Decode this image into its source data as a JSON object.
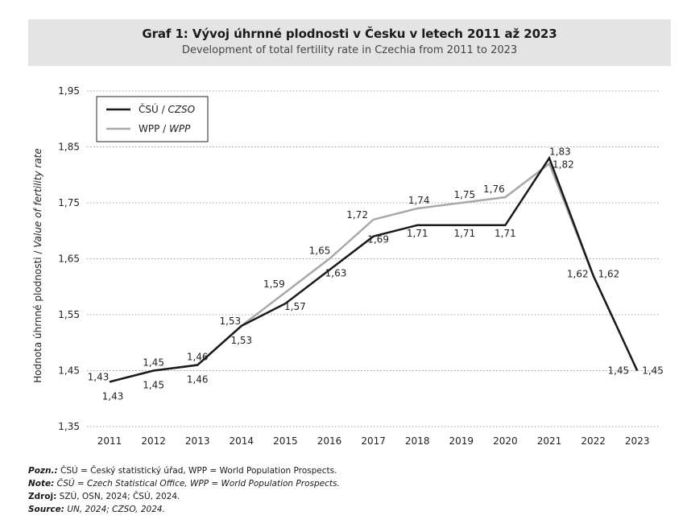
{
  "header": {
    "title_prefix": "Graf 1:",
    "title_main": "Vývoj úhrnné plodnosti v Česku v letech 2011 až 2023",
    "subtitle": "Development of total fertility rate in Czechia from 2011 to 2023"
  },
  "chart_data": {
    "type": "line",
    "title": "Graf 1: Vývoj úhrnné plodnosti v Česku v letech 2011 až 2023",
    "subtitle": "Development of total fertility rate in Czechia from 2011 to 2023",
    "xlabel": "",
    "ylabel": "Hodnota úhrnné plodnosti / Value of fertility rate",
    "ylabel_cz": "Hodnota úhrnné plodnosti / ",
    "ylabel_en": "Value of fertility rate",
    "ylim": [
      1.35,
      1.95
    ],
    "yticks": [
      1.35,
      1.45,
      1.55,
      1.65,
      1.75,
      1.85,
      1.95
    ],
    "ytick_labels": [
      "1,35",
      "1,45",
      "1,55",
      "1,65",
      "1,75",
      "1,85",
      "1,95"
    ],
    "categories": [
      "2011",
      "2012",
      "2013",
      "2014",
      "2015",
      "2016",
      "2017",
      "2018",
      "2019",
      "2020",
      "2021",
      "2022",
      "2023"
    ],
    "grid": "horizontal-dotted",
    "legend_position": "top-left",
    "series": [
      {
        "name": "ČSÚ / CZSO",
        "name_cz": "ČSÚ / ",
        "name_en": "CZSO",
        "color": "#1a1a1a",
        "values": [
          1.43,
          1.45,
          1.46,
          1.53,
          1.57,
          1.63,
          1.69,
          1.71,
          1.71,
          1.71,
          1.83,
          1.62,
          1.45
        ],
        "labels": [
          "1,43",
          "1,45",
          "1,46",
          "1,53",
          "1,57",
          "1,63",
          "1,69",
          "1,71",
          "1,71",
          "1,71",
          "1,83",
          "1,62",
          "1,45"
        ]
      },
      {
        "name": "WPP / WPP",
        "name_cz": "WPP / ",
        "name_en": "WPP",
        "color": "#a8a8a8",
        "values": [
          1.43,
          1.45,
          1.46,
          1.53,
          1.59,
          1.65,
          1.72,
          1.74,
          1.75,
          1.76,
          1.82,
          1.62,
          1.45
        ],
        "labels": [
          "1,43",
          "1,45",
          "1,46",
          "1,53",
          "1,59",
          "1,65",
          "1,72",
          "1,74",
          "1,75",
          "1,76",
          "1,82",
          "1,62",
          "1,45"
        ]
      }
    ]
  },
  "notes": {
    "pozn_label": "Pozn.:",
    "pozn_text": " ČSÚ = Český statistický úřad, WPP = World Population Prospects.",
    "note_label": "Note:",
    "note_text": " ČSÚ = Czech Statistical Office, WPP = World Population Prospects.",
    "zdroj_label": "Zdroj:",
    "zdroj_text": " SZÚ, OSN, 2024; ČSÚ, 2024.",
    "source_label": "Source:",
    "source_text": " UN, 2024; CZSO, 2024."
  }
}
